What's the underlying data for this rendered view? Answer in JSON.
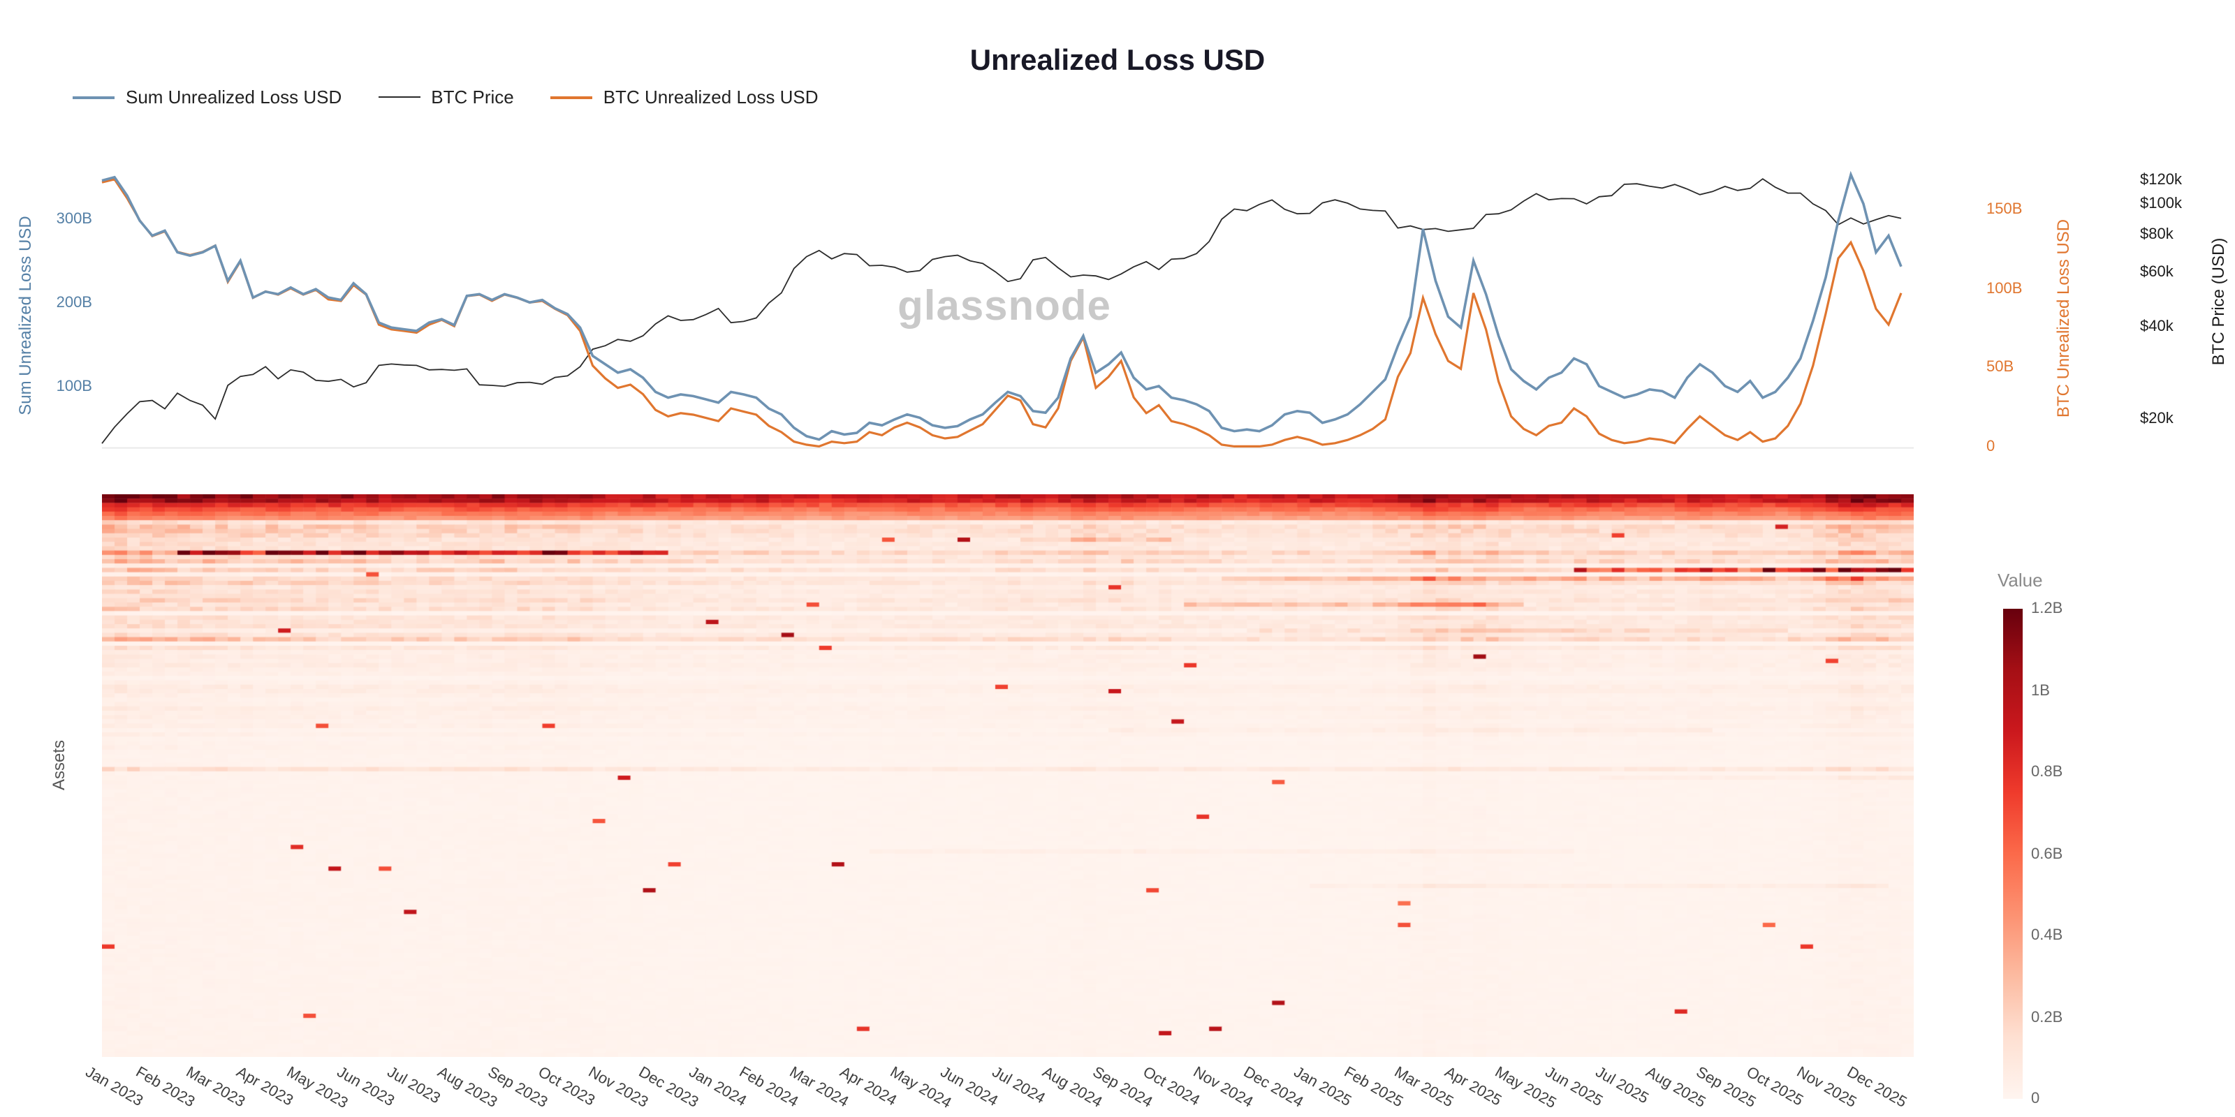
{
  "title": "Unrealized Loss USD",
  "watermark": "glassnode",
  "legend": [
    {
      "label": "Sum Unrealized Loss USD",
      "color": "#6e92b2",
      "line_width": 2
    },
    {
      "label": "BTC Price",
      "color": "#2b2b2b",
      "line_width": 1
    },
    {
      "label": "BTC Unrealized Loss USD",
      "color": "#e0762f",
      "line_width": 2
    }
  ],
  "axes": {
    "left": {
      "label": "Sum Unrealized Loss USD",
      "color": "#5580a6",
      "ticks": [
        {
          "label": "300B",
          "value": 300
        },
        {
          "label": "200B",
          "value": 200
        },
        {
          "label": "100B",
          "value": 100
        }
      ]
    },
    "right_loss": {
      "label": "BTC Unrealized Loss USD",
      "color": "#e0762f",
      "ticks": [
        {
          "label": "150B",
          "value": 150
        },
        {
          "label": "100B",
          "value": 100
        },
        {
          "label": "50B",
          "value": 50
        },
        {
          "label": "0",
          "value": 0
        }
      ]
    },
    "right_price": {
      "label": "BTC Price (USD)",
      "color": "#1c1c1c",
      "scale": "log",
      "ticks": [
        {
          "label": "$120k",
          "value": 120
        },
        {
          "label": "$100k",
          "value": 100
        },
        {
          "label": "$80k",
          "value": 80
        },
        {
          "label": "$60k",
          "value": 60
        },
        {
          "label": "$40k",
          "value": 40
        },
        {
          "label": "$20k",
          "value": 20
        }
      ]
    },
    "x": {
      "labels": [
        "Jan 2023",
        "Feb 2023",
        "Mar 2023",
        "Apr 2023",
        "May 2023",
        "Jun 2023",
        "Jul 2023",
        "Aug 2023",
        "Sep 2023",
        "Oct 2023",
        "Nov 2023",
        "Dec 2023",
        "Jan 2024",
        "Feb 2024",
        "Mar 2024",
        "Apr 2024",
        "May 2024",
        "Jun 2024",
        "Jul 2024",
        "Aug 2024",
        "Sep 2024",
        "Oct 2024",
        "Nov 2024",
        "Dec 2024",
        "Jan 2025",
        "Feb 2025",
        "Mar 2025",
        "Apr 2025",
        "May 2025",
        "Jun 2025",
        "Jul 2025",
        "Aug 2025",
        "Sep 2025",
        "Oct 2025",
        "Nov 2025",
        "Dec 2025"
      ]
    }
  },
  "heatmap": {
    "ylabel": "Assets",
    "rows": 130,
    "seed": 42,
    "colorbar": {
      "title": "Value",
      "ticks": [
        "1.2B",
        "1B",
        "0.8B",
        "0.6B",
        "0.4B",
        "0.2B",
        "0"
      ],
      "max_value": "1.2B",
      "colorscale": "Reds"
    }
  },
  "chart_data": [
    {
      "type": "line",
      "title": "Unrealized Loss USD",
      "x": {
        "start": "Jan 2023",
        "end": "Dec 2025",
        "step_months": 0.25,
        "n_points": 144
      },
      "month_labels": [
        "Jan 2023",
        "Feb 2023",
        "Mar 2023",
        "Apr 2023",
        "May 2023",
        "Jun 2023",
        "Jul 2023",
        "Aug 2023",
        "Sep 2023",
        "Oct 2023",
        "Nov 2023",
        "Dec 2023",
        "Jan 2024",
        "Feb 2024",
        "Mar 2024",
        "Apr 2024",
        "May 2024",
        "Jun 2024",
        "Jul 2024",
        "Aug 2024",
        "Sep 2024",
        "Oct 2024",
        "Nov 2024",
        "Dec 2024",
        "Jan 2025",
        "Feb 2025",
        "Mar 2025",
        "Apr 2025",
        "May 2025",
        "Jun 2025",
        "Jul 2025",
        "Aug 2025",
        "Sep 2025",
        "Oct 2025",
        "Nov 2025",
        "Dec 2025"
      ],
      "legend_position": "top-left",
      "grid": false,
      "series": [
        {
          "name": "Sum Unrealized Loss USD",
          "axis": "left",
          "unit": "USD billions",
          "ylim": [
            0,
            380
          ],
          "values": [
            348,
            352,
            330,
            300,
            282,
            288,
            262,
            258,
            262,
            270,
            228,
            252,
            208,
            215,
            212,
            220,
            212,
            218,
            208,
            205,
            225,
            212,
            178,
            172,
            170,
            168,
            178,
            182,
            175,
            210,
            212,
            205,
            212,
            208,
            202,
            205,
            195,
            188,
            172,
            138,
            128,
            118,
            122,
            112,
            95,
            88,
            92,
            90,
            86,
            82,
            95,
            92,
            88,
            75,
            68,
            52,
            42,
            38,
            48,
            44,
            46,
            58,
            55,
            62,
            68,
            64,
            55,
            52,
            54,
            62,
            68,
            82,
            95,
            90,
            72,
            70,
            88,
            135,
            162,
            118,
            128,
            142,
            112,
            98,
            102,
            88,
            85,
            80,
            72,
            52,
            48,
            50,
            48,
            55,
            68,
            72,
            70,
            58,
            62,
            68,
            80,
            95,
            110,
            150,
            185,
            290,
            228,
            185,
            172,
            252,
            212,
            162,
            122,
            108,
            98,
            112,
            118,
            135,
            128,
            102,
            95,
            88,
            92,
            98,
            96,
            88,
            112,
            128,
            118,
            102,
            95,
            108,
            88,
            95,
            112,
            135,
            180,
            232,
            300,
            355,
            320,
            262,
            282,
            245
          ]
        },
        {
          "name": "BTC Price",
          "axis": "right_price",
          "unit": "USD thousands",
          "scale": "log",
          "ylim": [
            15,
            130
          ],
          "values": [
            16.8,
            19.0,
            21.0,
            23.0,
            23.2,
            21.8,
            24.5,
            23.2,
            22.4,
            20.2,
            26.0,
            27.8,
            28.2,
            29.9,
            27.3,
            29.2,
            28.7,
            27.0,
            26.8,
            27.2,
            25.7,
            26.5,
            30.2,
            30.5,
            30.3,
            30.2,
            29.2,
            29.3,
            29.1,
            29.4,
            26.1,
            26.0,
            25.8,
            26.5,
            26.6,
            26.2,
            27.6,
            27.9,
            29.9,
            34.1,
            35.0,
            36.7,
            36.2,
            37.7,
            41.2,
            43.8,
            42.3,
            42.6,
            44.2,
            46.3,
            41.6,
            42.0,
            43.1,
            48.2,
            52.0,
            62.5,
            68.3,
            71.5,
            67.2,
            69.9,
            69.4,
            63.8,
            64.0,
            63.1,
            60.8,
            61.5,
            66.9,
            68.3,
            69.0,
            66.2,
            64.9,
            61.0,
            56.7,
            57.9,
            66.7,
            67.9,
            62.8,
            58.7,
            59.5,
            59.1,
            57.5,
            60.0,
            63.3,
            65.8,
            62.0,
            67.0,
            67.4,
            69.9,
            76.5,
            90.5,
            97.7,
            96.4,
            101.1,
            104.5,
            97.5,
            94.2,
            94.5,
            102.3,
            104.7,
            102.1,
            97.7,
            96.6,
            96.2,
            84.7,
            86.0,
            83.7,
            84.3,
            82.6,
            83.5,
            84.5,
            93.7,
            94.2,
            97.0,
            103.7,
            109.6,
            104.6,
            105.6,
            105.5,
            101.5,
            107.1,
            108.0,
            117.5,
            118.0,
            115.8,
            114.3,
            117.4,
            113.5,
            108.8,
            111.3,
            115.7,
            112.3,
            114.0,
            122.5,
            115.0,
            110.1,
            110.0,
            101.5,
            96.5,
            86.8,
            91.3,
            87.3,
            90.2,
            93.0,
            91.0
          ]
        },
        {
          "name": "BTC Unrealized Loss USD",
          "axis": "right_loss",
          "unit": "USD billions",
          "ylim": [
            0,
            170
          ],
          "values": [
            168,
            170,
            158,
            144,
            134,
            137,
            124,
            122,
            124,
            128,
            105,
            118,
            95,
            99,
            97,
            101,
            97,
            100,
            94,
            93,
            103,
            97,
            78,
            75,
            74,
            73,
            78,
            81,
            77,
            96,
            97,
            93,
            97,
            95,
            92,
            93,
            88,
            84,
            74,
            52,
            44,
            38,
            40,
            34,
            24,
            20,
            22,
            21,
            19,
            17,
            25,
            23,
            21,
            14,
            10,
            4,
            2,
            1,
            4,
            3,
            4,
            10,
            8,
            13,
            16,
            13,
            8,
            6,
            7,
            11,
            15,
            24,
            33,
            30,
            15,
            13,
            25,
            55,
            70,
            38,
            45,
            55,
            32,
            22,
            27,
            17,
            15,
            12,
            8,
            2,
            1,
            1,
            1,
            2,
            5,
            7,
            5,
            2,
            3,
            5,
            8,
            12,
            18,
            45,
            60,
            95,
            72,
            55,
            50,
            98,
            75,
            42,
            20,
            12,
            8,
            14,
            16,
            25,
            20,
            9,
            5,
            3,
            4,
            6,
            5,
            3,
            12,
            20,
            14,
            8,
            5,
            10,
            4,
            6,
            14,
            28,
            52,
            85,
            120,
            130,
            112,
            88,
            78,
            98
          ]
        }
      ]
    },
    {
      "type": "heatmap",
      "ylabel": "Assets",
      "x_range": [
        "Jan 2023",
        "Dec 2025"
      ],
      "rows": 130,
      "value_range_billions": [
        0,
        1.2
      ],
      "colorscale": "Reds",
      "colorbar_title": "Value",
      "colorbar_ticks": [
        "0",
        "0.2B",
        "0.4B",
        "0.6B",
        "0.8B",
        "1B",
        "1.2B"
      ],
      "note": "Per-asset unrealized loss over time. Top rows (largest assets) are darkest (near 1.2B) across the whole period; intensity of all rows co-moves with Sum Unrealized Loss USD (dark early 2023, light mid/late 2024, dark spikes Mar-Apr 2025 and Nov-Dec 2025). Many thin light-pink rows with sporadic dark horizontal streaks."
    }
  ]
}
